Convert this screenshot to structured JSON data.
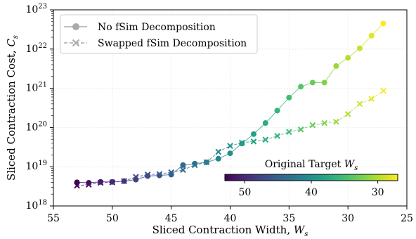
{
  "chart_data": {
    "type": "scatter",
    "title": "",
    "xlabel": "Sliced Contraction Width, W_s",
    "ylabel": "Sliced Contraction Cost, C_s",
    "xlim": [
      55,
      25
    ],
    "ylim": [
      1e+18,
      1e+23
    ],
    "y_scale": "log",
    "grid": true,
    "x_ticks": [
      55,
      50,
      45,
      40,
      35,
      30,
      25
    ],
    "y_ticks": [
      1e+18,
      1e+19,
      1e+20,
      1e+21,
      1e+22,
      1e+23
    ],
    "y_tick_exponents": [
      "18",
      "19",
      "20",
      "21",
      "22",
      "23"
    ],
    "legend_placement": "top-left",
    "series": [
      {
        "name": "No fSim Decomposition",
        "marker": "circle",
        "x": [
          53,
          52,
          51,
          50,
          49,
          48,
          47,
          46,
          45,
          44,
          43,
          42,
          41,
          40,
          39,
          38,
          37,
          36,
          35,
          34,
          33,
          32,
          31,
          30,
          29,
          28,
          27
        ],
        "y": [
          4e+18,
          3.9e+18,
          4.1e+18,
          4.1e+18,
          4.3e+18,
          4.7e+18,
          5.8e+18,
          6e+18,
          6.3e+18,
          1.1e+19,
          1.2e+19,
          1.3e+19,
          1.6e+19,
          2.2e+19,
          3.9e+19,
          6.8e+19,
          1.3e+20,
          2.7e+20,
          5.8e+20,
          1.1e+21,
          1.4e+21,
          1.4e+21,
          3.7e+21,
          6e+21,
          1.05e+22,
          2.2e+22,
          4.5e+22
        ],
        "target_width": [
          53,
          52,
          51,
          50,
          49,
          48,
          47,
          46,
          45,
          44,
          43,
          42,
          41,
          40,
          39,
          38,
          37,
          36,
          35,
          34,
          33,
          32,
          31,
          30,
          29,
          28,
          27
        ]
      },
      {
        "name": "Swapped fSim Decomposition",
        "marker": "x",
        "x": [
          53,
          52,
          51,
          50,
          49,
          48,
          47,
          46,
          45,
          44,
          43,
          42,
          41,
          40,
          39,
          38,
          37,
          36,
          35,
          34,
          33,
          32,
          31,
          30,
          29,
          28,
          27
        ],
        "y": [
          3.3e+18,
          3.5e+18,
          3.9e+18,
          4e+18,
          4.3e+18,
          5.5e+18,
          6.3e+18,
          6.5e+18,
          7.2e+18,
          8.3e+18,
          1.1e+19,
          1.3e+19,
          2.4e+19,
          3.4e+19,
          4.1e+19,
          4.4e+19,
          4.9e+19,
          6.1e+19,
          7.7e+19,
          8.9e+19,
          1.15e+20,
          1.3e+20,
          1.4e+20,
          2.2e+20,
          4e+20,
          5.4e+20,
          8.6e+20
        ],
        "target_width": [
          53,
          52,
          51,
          50,
          49,
          48,
          47,
          46,
          45,
          44,
          43,
          42,
          41,
          40,
          39,
          38,
          37,
          36,
          35,
          34,
          33,
          32,
          31,
          30,
          29,
          28,
          27
        ]
      }
    ],
    "colorbar": {
      "label": "Original Target W_s",
      "ticks": [
        50,
        40,
        30
      ],
      "range": [
        53,
        27
      ],
      "colormap": "viridis",
      "placement": "lower-right"
    }
  }
}
